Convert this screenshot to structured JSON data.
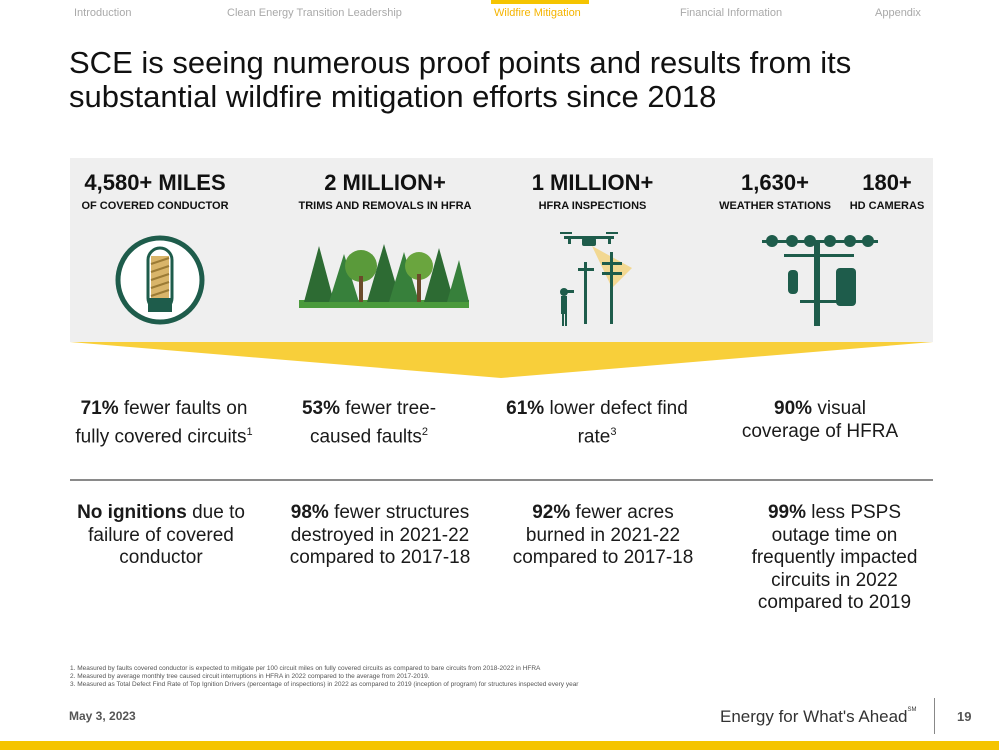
{
  "nav": {
    "items": [
      "Introduction",
      "Clean Energy Transition Leadership",
      "Wildfire Mitigation",
      "Financial Information",
      "Appendix"
    ],
    "active": "Wildfire Mitigation"
  },
  "title": "SCE is seeing numerous proof points and results from its substantial wildfire mitigation efforts since 2018",
  "stats": {
    "conductor": {
      "value": "4,580+ MILES",
      "label": "OF COVERED CONDUCTOR"
    },
    "trims": {
      "value": "2 MILLION+",
      "label": "TRIMS AND REMOVALS IN HFRA"
    },
    "inspections": {
      "value": "1 MILLION+",
      "label": "HFRA INSPECTIONS"
    },
    "weather": {
      "value": "1,630+",
      "label": "WEATHER STATIONS"
    },
    "cameras": {
      "value": "180+",
      "label": "HD CAMERAS"
    }
  },
  "results_row1": [
    {
      "bold": "71%",
      "rest": " fewer faults on fully covered circuits",
      "sup": "1"
    },
    {
      "bold": "53%",
      "rest": " fewer tree-caused faults",
      "sup": "2"
    },
    {
      "bold": "61%",
      "rest": " lower defect find rate",
      "sup": "3"
    },
    {
      "bold": "90%",
      "rest": " visual coverage of HFRA",
      "sup": ""
    }
  ],
  "results_row2": [
    {
      "bold": "No ignitions",
      "rest": " due to failure of covered conductor"
    },
    {
      "bold": "98%",
      "rest": " fewer structures destroyed in 2021-22 compared to 2017-18"
    },
    {
      "bold": "92%",
      "rest": " fewer acres burned in 2021-22 compared to 2017-18"
    },
    {
      "bold": "99%",
      "rest": " less PSPS outage time on frequently impacted circuits in 2022 compared to 2019"
    }
  ],
  "footnotes": [
    "1.  Measured by faults covered conductor is expected to mitigate per 100 circuit miles on fully covered circuits as compared to bare circuits from 2018-2022 in HFRA",
    "2.  Measured by average monthly tree caused circuit interruptions in HFRA in 2022 compared to the average from 2017-2019.",
    "3.  Measured as Total Defect Find Rate of Top Ignition Drivers (percentage of inspections) in 2022 as compared to 2019 (inception of program) for structures inspected every year"
  ],
  "footer": {
    "date": "May 3, 2023",
    "tagline": "Energy for What's Ahead",
    "tagline_mark": "SM",
    "page": "19"
  },
  "colors": {
    "accent_yellow": "#f5c400",
    "icon_green": "#1e5c4b",
    "band_grey": "#efefef"
  }
}
